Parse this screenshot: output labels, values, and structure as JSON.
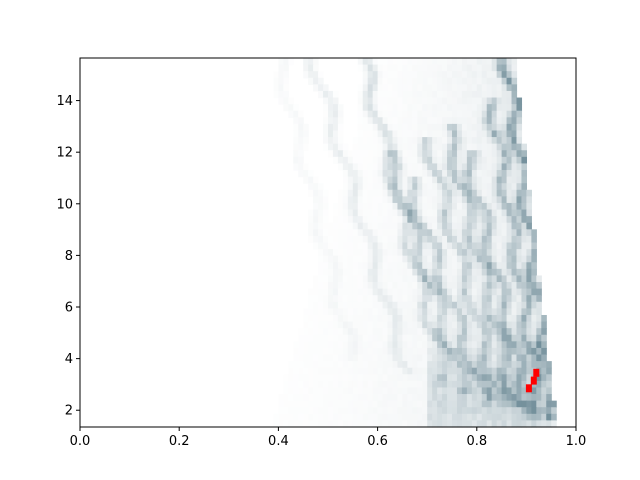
{
  "colors": {
    "background": "#ffffff",
    "axes_frame": "#000000",
    "density_low": "#ffffff",
    "density_high": "#4a6f7e",
    "highlight": "#ff0000"
  },
  "chart_data": {
    "type": "heatmap",
    "title": "",
    "xlabel": "",
    "ylabel": "",
    "xlim": [
      0.0,
      1.0
    ],
    "ylim": [
      1.35,
      15.65
    ],
    "grid": false,
    "colormap": "white to dark teal-gray (density)",
    "x_ticks": [
      {
        "value": 0.0,
        "label": "0.0"
      },
      {
        "value": 0.2,
        "label": "0.2"
      },
      {
        "value": 0.4,
        "label": "0.4"
      },
      {
        "value": 0.6,
        "label": "0.6"
      },
      {
        "value": 0.8,
        "label": "0.8"
      },
      {
        "value": 1.0,
        "label": "1.0"
      }
    ],
    "y_ticks": [
      {
        "value": 2,
        "label": "2"
      },
      {
        "value": 4,
        "label": "4"
      },
      {
        "value": 6,
        "label": "6"
      },
      {
        "value": 8,
        "label": "8"
      },
      {
        "value": 10,
        "label": "10"
      },
      {
        "value": 12,
        "label": "12"
      },
      {
        "value": 14,
        "label": "14"
      }
    ],
    "ridges": [
      {
        "y": [
          1.6,
          15.6
        ],
        "x": [
          0.96,
          0.86
        ],
        "strength": 0.9
      },
      {
        "y": [
          1.8,
          14.0
        ],
        "x": [
          0.93,
          0.83
        ],
        "strength": 0.7
      },
      {
        "y": [
          1.6,
          12.0
        ],
        "x": [
          0.91,
          0.78
        ],
        "strength": 0.6
      },
      {
        "y": [
          2.0,
          13.0
        ],
        "x": [
          0.88,
          0.74
        ],
        "strength": 0.55
      },
      {
        "y": [
          2.0,
          12.5
        ],
        "x": [
          0.85,
          0.7
        ],
        "strength": 0.5
      },
      {
        "y": [
          2.2,
          11.0
        ],
        "x": [
          0.82,
          0.66
        ],
        "strength": 0.5
      },
      {
        "y": [
          2.5,
          12.0
        ],
        "x": [
          0.78,
          0.62
        ],
        "strength": 0.45
      },
      {
        "y": [
          3.0,
          15.6
        ],
        "x": [
          0.74,
          0.57
        ],
        "strength": 0.35
      },
      {
        "y": [
          3.5,
          15.6
        ],
        "x": [
          0.66,
          0.47
        ],
        "strength": 0.2
      },
      {
        "y": [
          4.0,
          15.6
        ],
        "x": [
          0.55,
          0.4
        ],
        "strength": 0.08
      }
    ],
    "highlight_cells": [
      {
        "x": 0.905,
        "y": 2.85
      },
      {
        "x": 0.915,
        "y": 3.15
      },
      {
        "x": 0.92,
        "y": 3.45
      }
    ]
  }
}
